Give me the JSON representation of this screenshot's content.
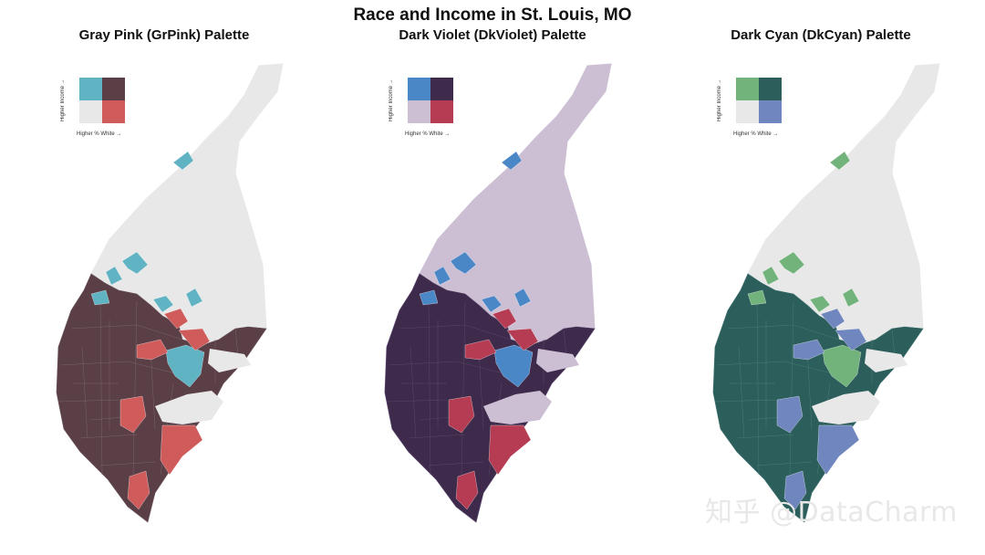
{
  "main_title": "Race and Income in St. Louis, MO",
  "legend": {
    "y_label": "Higher Income →",
    "x_label": "Higher % White →"
  },
  "watermark": "知乎 @DataCharm",
  "panels": [
    {
      "title": "Gray Pink (GrPink) Palette",
      "colors": {
        "low": "#e8e8e8",
        "high_income": "#5ac8c8",
        "high_white": "#be64ac",
        "both": "#3b4994"
      },
      "legend_colors": {
        "top_left": "#5fb3c3",
        "top_right": "#5a3f46",
        "bottom_left": "#e8e8e8",
        "bottom_right": "#cf5b5b"
      }
    },
    {
      "title": "Dark Violet (DkViolet) Palette",
      "legend_colors": {
        "top_left": "#4a87c7",
        "top_right": "#3e2a4a",
        "bottom_left": "#ccbfd4",
        "bottom_right": "#b53c52"
      }
    },
    {
      "title": "Dark Cyan (DkCyan) Palette",
      "legend_colors": {
        "top_left": "#72b37c",
        "top_right": "#2c5e5c",
        "bottom_left": "#e8e8e8",
        "bottom_right": "#6f86bf"
      }
    }
  ]
}
